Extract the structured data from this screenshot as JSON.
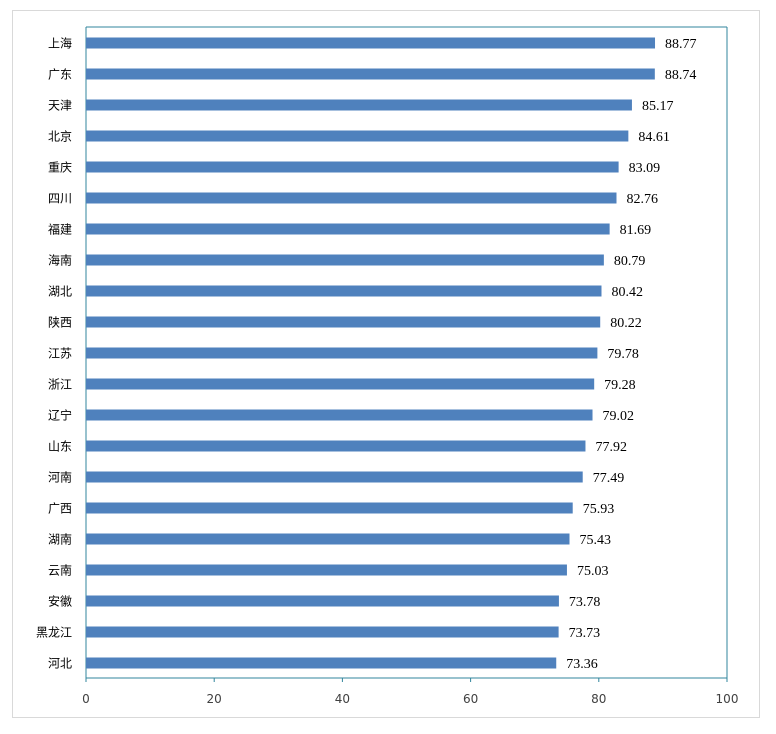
{
  "chart_data": {
    "type": "bar",
    "orientation": "horizontal",
    "title": "",
    "xlabel": "",
    "ylabel": "",
    "categories": [
      "上海",
      "广东",
      "天津",
      "北京",
      "重庆",
      "四川",
      "福建",
      "海南",
      "湖北",
      "陕西",
      "江苏",
      "浙江",
      "辽宁",
      "山东",
      "河南",
      "广西",
      "湖南",
      "云南",
      "安徽",
      "黑龙江",
      "河北"
    ],
    "values": [
      88.77,
      88.74,
      85.17,
      84.61,
      83.09,
      82.76,
      81.69,
      80.79,
      80.42,
      80.22,
      79.78,
      79.28,
      79.02,
      77.92,
      77.49,
      75.93,
      75.43,
      75.03,
      73.78,
      73.73,
      73.36
    ],
    "value_labels": [
      "88.77",
      "88.74",
      "85.17",
      "84.61",
      "83.09",
      "82.76",
      "81.69",
      "80.79",
      "80.42",
      "80.22",
      "79.78",
      "79.28",
      "79.02",
      "77.92",
      "77.49",
      "75.93",
      "75.43",
      "75.03",
      "73.78",
      "73.73",
      "73.36"
    ],
    "xlim": [
      0,
      100
    ],
    "x_ticks": [
      0,
      20,
      40,
      60,
      80,
      100
    ],
    "x_tick_labels": [
      "0",
      "20",
      "40",
      "60",
      "80",
      "100"
    ],
    "grid": false,
    "legend": false,
    "colors": {
      "bar": "#4f81bd",
      "axis": "#31859c",
      "frame": "#d9d9d9"
    }
  }
}
